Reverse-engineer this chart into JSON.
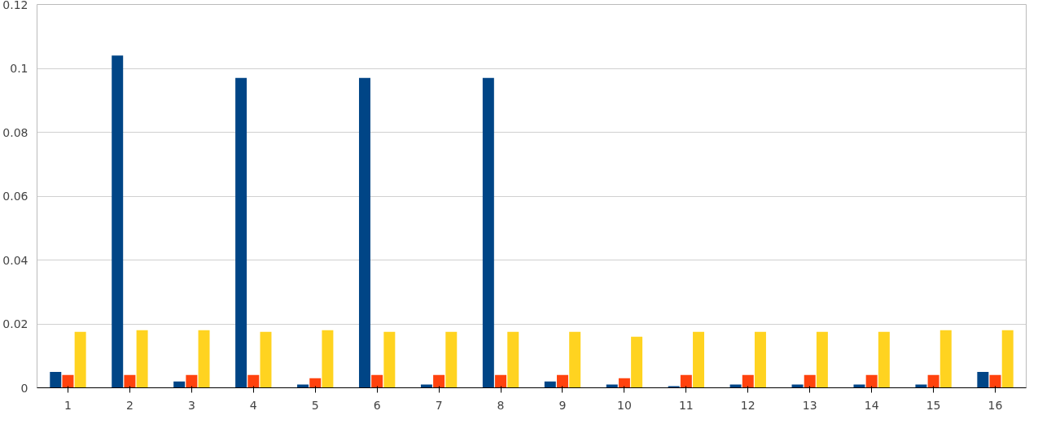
{
  "chart_data": {
    "type": "bar",
    "x": [
      1,
      2,
      3,
      4,
      5,
      6,
      7,
      8,
      9,
      10,
      11,
      12,
      13,
      14,
      15,
      16
    ],
    "xlim": [
      0.5,
      16.5
    ],
    "xticks": [
      1,
      2,
      3,
      4,
      5,
      6,
      7,
      8,
      9,
      10,
      11,
      12,
      13,
      14,
      15,
      16
    ],
    "series": [
      {
        "color": "#004586",
        "values": [
          0.005,
          0.104,
          0.002,
          0.097,
          0.001,
          0.097,
          0.001,
          0.097,
          0.002,
          0.001,
          0.0005,
          0.001,
          0.001,
          0.001,
          0.001,
          0.005
        ]
      },
      {
        "color": "#ff420e",
        "values": [
          0.004,
          0.004,
          0.004,
          0.004,
          0.003,
          0.004,
          0.004,
          0.004,
          0.004,
          0.003,
          0.004,
          0.004,
          0.004,
          0.004,
          0.004,
          0.004
        ]
      },
      {
        "color": "#ffd320",
        "values": [
          0.0175,
          0.018,
          0.018,
          0.0175,
          0.018,
          0.0175,
          0.0175,
          0.0175,
          0.0175,
          0.016,
          0.0175,
          0.0175,
          0.0175,
          0.0175,
          0.018,
          0.018
        ]
      }
    ],
    "ylim": [
      0,
      0.12
    ],
    "yticks": [
      0,
      0.02,
      0.04,
      0.06,
      0.08,
      0.1,
      0.12
    ],
    "grid": "y"
  }
}
